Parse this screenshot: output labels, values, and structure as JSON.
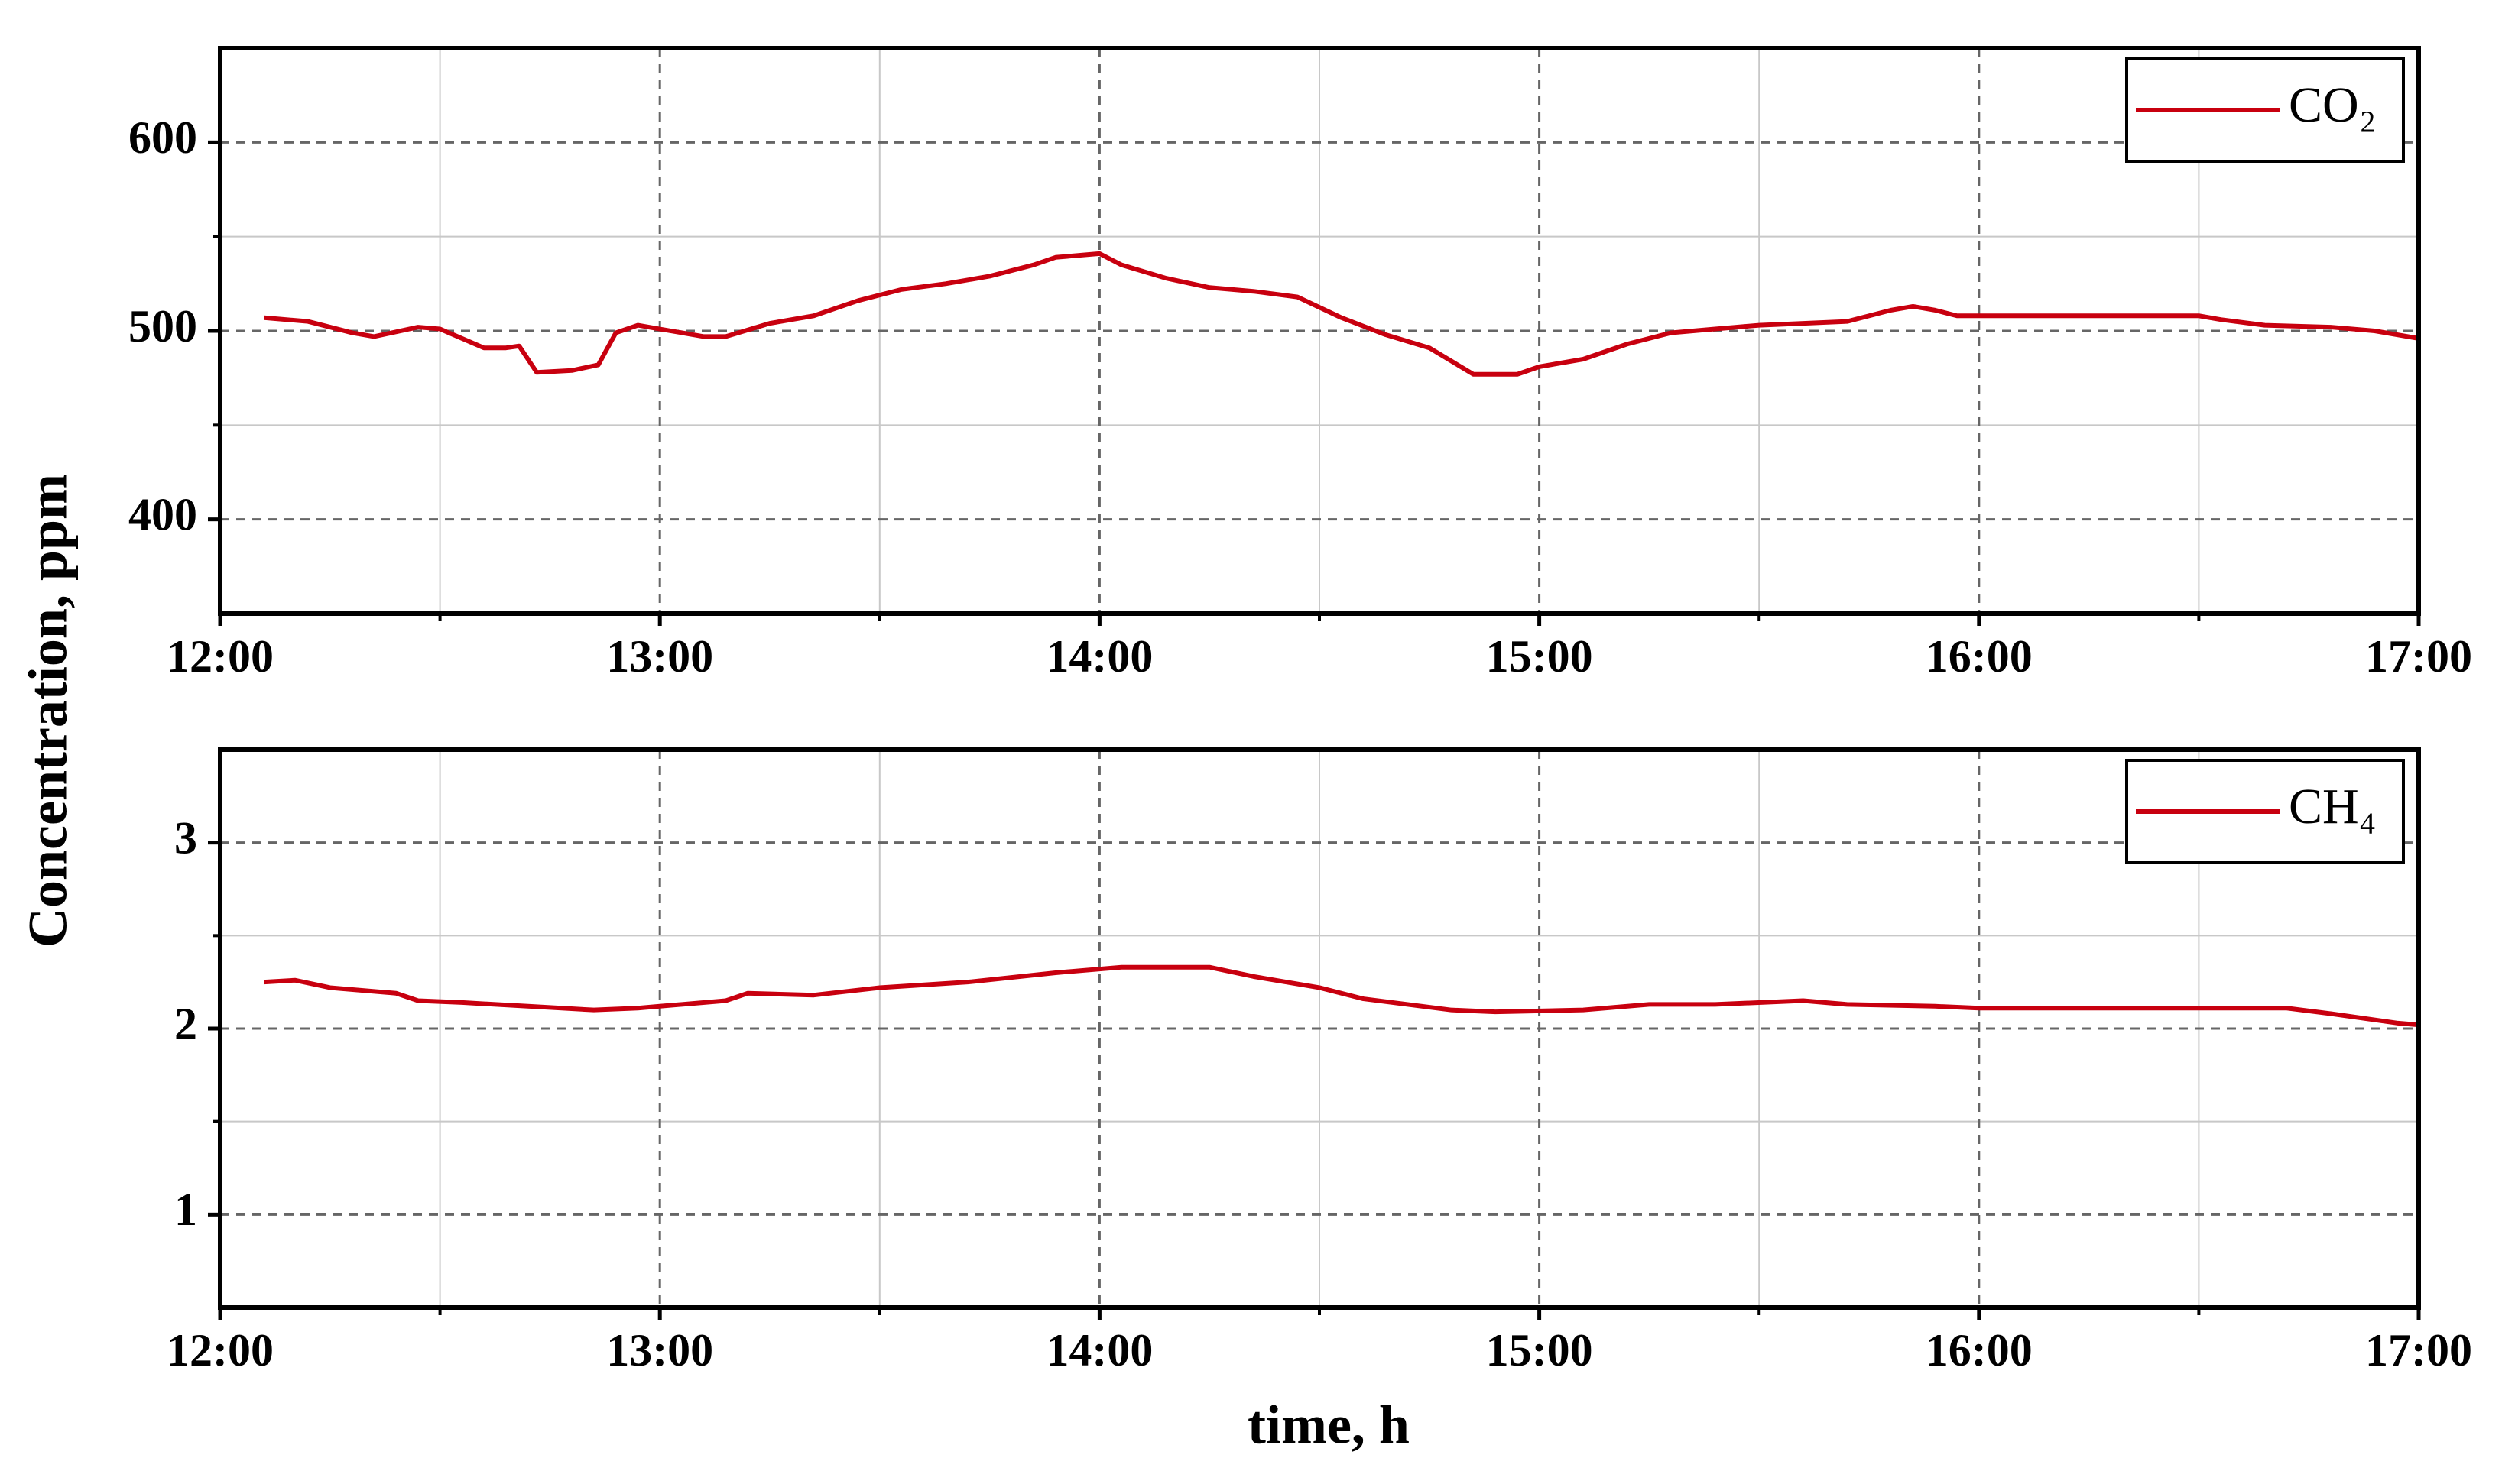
{
  "chart_data": [
    {
      "type": "line",
      "ylabel": "Concentration, ppm",
      "xlim": [
        12,
        17
      ],
      "ylim": [
        350,
        650
      ],
      "xticks": [
        {
          "value": 12,
          "label": "12:00"
        },
        {
          "value": 13,
          "label": "13:00"
        },
        {
          "value": 14,
          "label": "14:00"
        },
        {
          "value": 15,
          "label": "15:00"
        },
        {
          "value": 16,
          "label": "16:00"
        },
        {
          "value": 17,
          "label": "17:00"
        }
      ],
      "xminorticks": [
        12.5,
        13.5,
        14.5,
        15.5,
        16.5
      ],
      "yticks": [
        400,
        500,
        600
      ],
      "yminorticks": [
        450,
        550
      ],
      "grid": true,
      "legend": "upper right",
      "series": [
        {
          "name": "CO₂",
          "color": "#c8000f",
          "x": [
            12.1,
            12.2,
            12.3,
            12.35,
            12.45,
            12.5,
            12.6,
            12.65,
            12.68,
            12.72,
            12.8,
            12.86,
            12.9,
            12.95,
            13.0,
            13.1,
            13.15,
            13.25,
            13.35,
            13.45,
            13.55,
            13.65,
            13.75,
            13.85,
            13.9,
            14.0,
            14.05,
            14.15,
            14.25,
            14.35,
            14.45,
            14.55,
            14.65,
            14.75,
            14.8,
            14.85,
            14.95,
            15.0,
            15.1,
            15.2,
            15.3,
            15.4,
            15.5,
            15.7,
            15.8,
            15.85,
            15.9,
            15.95,
            16.0,
            16.5,
            16.55,
            16.65,
            16.8,
            16.9,
            17.0
          ],
          "values": [
            507,
            505,
            499,
            497,
            502,
            501,
            491,
            491,
            492,
            478,
            479,
            482,
            499,
            503,
            501,
            497,
            497,
            504,
            508,
            516,
            522,
            525,
            529,
            535,
            539,
            541,
            535,
            528,
            523,
            521,
            518,
            507,
            498,
            491,
            484,
            477,
            477,
            481,
            485,
            493,
            499,
            501,
            503,
            505,
            511,
            513,
            511,
            508,
            508,
            508,
            506,
            503,
            502,
            500,
            496
          ]
        }
      ]
    },
    {
      "type": "line",
      "xlabel": "time, h",
      "xlim": [
        12,
        17
      ],
      "ylim": [
        0.5,
        3.5
      ],
      "xticks": [
        {
          "value": 12,
          "label": "12:00"
        },
        {
          "value": 13,
          "label": "13:00"
        },
        {
          "value": 14,
          "label": "14:00"
        },
        {
          "value": 15,
          "label": "15:00"
        },
        {
          "value": 16,
          "label": "16:00"
        },
        {
          "value": 17,
          "label": "17:00"
        }
      ],
      "xminorticks": [
        12.5,
        13.5,
        14.5,
        15.5,
        16.5
      ],
      "yticks": [
        1,
        2,
        3
      ],
      "yminorticks": [
        1.5,
        2.5
      ],
      "grid": true,
      "legend": "upper right",
      "series": [
        {
          "name": "CH₄",
          "color": "#c8000f",
          "x": [
            12.1,
            12.17,
            12.25,
            12.4,
            12.45,
            12.55,
            12.7,
            12.85,
            12.95,
            13.0,
            13.15,
            13.2,
            13.35,
            13.5,
            13.7,
            13.9,
            14.05,
            14.25,
            14.35,
            14.5,
            14.6,
            14.8,
            14.9,
            15.1,
            15.25,
            15.4,
            15.6,
            15.7,
            15.9,
            16.0,
            16.7,
            16.8,
            16.95,
            17.0
          ],
          "values": [
            2.25,
            2.26,
            2.22,
            2.19,
            2.15,
            2.14,
            2.12,
            2.1,
            2.11,
            2.12,
            2.15,
            2.19,
            2.18,
            2.22,
            2.25,
            2.3,
            2.33,
            2.33,
            2.28,
            2.22,
            2.16,
            2.1,
            2.09,
            2.1,
            2.13,
            2.13,
            2.15,
            2.13,
            2.12,
            2.11,
            2.11,
            2.08,
            2.03,
            2.02
          ]
        }
      ]
    }
  ]
}
